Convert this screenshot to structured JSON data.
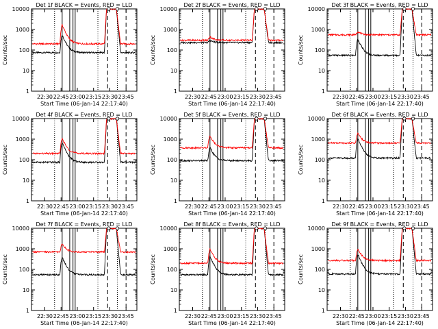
{
  "figure": {
    "ylabel": "Counts/sec",
    "xlabel": "Start Time (06-Jan-14 22:17:40)",
    "colors": {
      "events": "#000000",
      "lld": "#ff0000",
      "axes": "#000000"
    }
  },
  "chart_data": [
    {
      "type": "line",
      "title": "Det 1f BLACK = Events, RED = LLD",
      "xlabel": "Start Time (06-Jan-14 22:17:40)",
      "ylabel": "Counts/sec",
      "ylog": true,
      "ylim": [
        1,
        10000
      ],
      "xlim": [
        "22:17:40",
        "23:55"
      ],
      "xticks": [
        "22:30",
        "22:45",
        "23:00",
        "23:15",
        "23:30",
        "23:45"
      ],
      "yticks": [
        "1",
        "10",
        "100",
        "1000",
        "10000"
      ],
      "solid_vlines": [
        "22:46",
        "22:53",
        "22:56",
        "22:58"
      ],
      "dotted_vlines": [
        "22:39",
        "23:19",
        "23:37"
      ],
      "dashed_vlines": [
        "23:28",
        "23:45"
      ],
      "series": [
        {
          "name": "Events",
          "color": "#000000",
          "baseline": 75,
          "peak": 550
        },
        {
          "name": "LLD",
          "color": "#ff0000",
          "baseline": 200,
          "peak": 1700
        }
      ],
      "saa_top": 10000
    },
    {
      "type": "line",
      "title": "Det 2f BLACK = Events, RED = LLD",
      "xlabel": "Start Time (06-Jan-14 22:17:40)",
      "ylabel": "Counts/sec",
      "ylog": true,
      "ylim": [
        1,
        10000
      ],
      "xlim": [
        "22:17:40",
        "23:55"
      ],
      "xticks": [
        "22:30",
        "22:45",
        "23:00",
        "23:15",
        "23:30",
        "23:45"
      ],
      "yticks": [
        "1",
        "10",
        "100",
        "1000",
        "10000"
      ],
      "solid_vlines": [
        "22:46",
        "22:53",
        "22:56",
        "22:58"
      ],
      "dotted_vlines": [
        "22:39",
        "23:19",
        "23:37"
      ],
      "dashed_vlines": [
        "23:28",
        "23:45"
      ],
      "series": [
        {
          "name": "Events",
          "color": "#000000",
          "baseline": 230,
          "peak": 300
        },
        {
          "name": "LLD",
          "color": "#ff0000",
          "baseline": 300,
          "peak": 450
        }
      ],
      "saa_top": 10000
    },
    {
      "type": "line",
      "title": "Det 3f BLACK = Events, RED = LLD",
      "xlabel": "Start Time (06-Jan-14 22:17:40)",
      "ylabel": "Counts/sec",
      "ylog": true,
      "ylim": [
        1,
        10000
      ],
      "xlim": [
        "22:17:40",
        "23:55"
      ],
      "xticks": [
        "22:30",
        "22:45",
        "23:00",
        "23:15",
        "23:30",
        "23:45"
      ],
      "yticks": [
        "1",
        "10",
        "100",
        "1000",
        "10000"
      ],
      "solid_vlines": [
        "22:46",
        "22:53",
        "22:56",
        "22:58"
      ],
      "dotted_vlines": [
        "22:39",
        "23:19",
        "23:37"
      ],
      "dashed_vlines": [
        "23:28",
        "23:45"
      ],
      "series": [
        {
          "name": "Events",
          "color": "#000000",
          "baseline": 55,
          "peak": 350
        },
        {
          "name": "LLD",
          "color": "#ff0000",
          "baseline": 550,
          "peak": 800
        }
      ],
      "saa_top": 10000
    },
    {
      "type": "line",
      "title": "Det 4f BLACK = Events, RED = LLD",
      "xlabel": "Start Time (06-Jan-14 22:17:40)",
      "ylabel": "Counts/sec",
      "ylog": true,
      "ylim": [
        1,
        10000
      ],
      "xlim": [
        "22:17:40",
        "23:55"
      ],
      "xticks": [
        "22:30",
        "22:45",
        "23:00",
        "23:15",
        "23:30",
        "23:45"
      ],
      "yticks": [
        "1",
        "10",
        "100",
        "1000",
        "10000"
      ],
      "solid_vlines": [
        "22:46",
        "22:53",
        "22:56",
        "22:58"
      ],
      "dotted_vlines": [
        "22:39",
        "23:19",
        "23:37"
      ],
      "dashed_vlines": [
        "23:28",
        "23:45"
      ],
      "series": [
        {
          "name": "Events",
          "color": "#000000",
          "baseline": 75,
          "peak": 700
        },
        {
          "name": "LLD",
          "color": "#ff0000",
          "baseline": 200,
          "peak": 1100
        }
      ],
      "saa_top": 10000
    },
    {
      "type": "line",
      "title": "Det 5f BLACK = Events, RED = LLD",
      "xlabel": "Start Time (06-Jan-14 22:17:40)",
      "ylabel": "Counts/sec",
      "ylog": true,
      "ylim": [
        1,
        10000
      ],
      "xlim": [
        "22:17:40",
        "23:55"
      ],
      "xticks": [
        "22:30",
        "22:45",
        "23:00",
        "23:15",
        "23:30",
        "23:45"
      ],
      "yticks": [
        "1",
        "10",
        "100",
        "1000",
        "10000"
      ],
      "solid_vlines": [
        "22:46",
        "22:53",
        "22:56",
        "22:58"
      ],
      "dotted_vlines": [
        "22:39",
        "23:19",
        "23:37"
      ],
      "dashed_vlines": [
        "23:28",
        "23:45"
      ],
      "series": [
        {
          "name": "Events",
          "color": "#000000",
          "baseline": 90,
          "peak": 400
        },
        {
          "name": "LLD",
          "color": "#ff0000",
          "baseline": 380,
          "peak": 1500
        }
      ],
      "saa_top": 10000
    },
    {
      "type": "line",
      "title": "Det 6f BLACK = Events, RED = LLD",
      "xlabel": "Start Time (06-Jan-14 22:17:40)",
      "ylabel": "Counts/sec",
      "ylog": true,
      "ylim": [
        1,
        10000
      ],
      "xlim": [
        "22:17:40",
        "23:55"
      ],
      "xticks": [
        "22:30",
        "22:45",
        "23:00",
        "23:15",
        "23:30",
        "23:45"
      ],
      "yticks": [
        "1",
        "10",
        "100",
        "1000",
        "10000"
      ],
      "solid_vlines": [
        "22:46",
        "22:53",
        "22:56",
        "22:58"
      ],
      "dotted_vlines": [
        "22:39",
        "23:19",
        "23:37"
      ],
      "dashed_vlines": [
        "23:28",
        "23:45"
      ],
      "series": [
        {
          "name": "Events",
          "color": "#000000",
          "baseline": 120,
          "peak": 1100
        },
        {
          "name": "LLD",
          "color": "#ff0000",
          "baseline": 650,
          "peak": 2000
        }
      ],
      "saa_top": 10000
    },
    {
      "type": "line",
      "title": "Det 7f BLACK = Events, RED = LLD",
      "xlabel": "Start Time (06-Jan-14 22:17:40)",
      "ylabel": "Counts/sec",
      "ylog": true,
      "ylim": [
        1,
        10000
      ],
      "xlim": [
        "22:17:40",
        "23:55"
      ],
      "xticks": [
        "22:30",
        "22:45",
        "23:00",
        "23:15",
        "23:30",
        "23:45"
      ],
      "yticks": [
        "1",
        "10",
        "100",
        "1000",
        "10000"
      ],
      "solid_vlines": [
        "22:46",
        "22:53",
        "22:56",
        "22:58"
      ],
      "dotted_vlines": [
        "22:39",
        "23:19",
        "23:37"
      ],
      "dashed_vlines": [
        "23:28",
        "23:45"
      ],
      "series": [
        {
          "name": "Events",
          "color": "#000000",
          "baseline": 55,
          "peak": 400
        },
        {
          "name": "LLD",
          "color": "#ff0000",
          "baseline": 700,
          "peak": 1800
        }
      ],
      "saa_top": 10000
    },
    {
      "type": "line",
      "title": "Det 8f BLACK = Events, RED = LLD",
      "xlabel": "Start Time (06-Jan-14 22:17:40)",
      "ylabel": "Counts/sec",
      "ylog": true,
      "ylim": [
        1,
        10000
      ],
      "xlim": [
        "22:17:40",
        "23:55"
      ],
      "xticks": [
        "22:30",
        "22:45",
        "23:00",
        "23:15",
        "23:30",
        "23:45"
      ],
      "yticks": [
        "1",
        "10",
        "100",
        "1000",
        "10000"
      ],
      "solid_vlines": [
        "22:46",
        "22:53",
        "22:56",
        "22:58"
      ],
      "dotted_vlines": [
        "22:39",
        "23:19",
        "23:37"
      ],
      "dashed_vlines": [
        "23:28",
        "23:45"
      ],
      "series": [
        {
          "name": "Events",
          "color": "#000000",
          "baseline": 55,
          "peak": 450
        },
        {
          "name": "LLD",
          "color": "#ff0000",
          "baseline": 200,
          "peak": 1000
        }
      ],
      "saa_top": 10000
    },
    {
      "type": "line",
      "title": "Det 9f BLACK = Events, RED = LLD",
      "xlabel": "Start Time (06-Jan-14 22:17:40)",
      "ylabel": "Counts/sec",
      "ylog": true,
      "ylim": [
        1,
        10000
      ],
      "xlim": [
        "22:17:40",
        "23:55"
      ],
      "xticks": [
        "22:30",
        "22:45",
        "23:00",
        "23:15",
        "23:30",
        "23:45"
      ],
      "yticks": [
        "1",
        "10",
        "100",
        "1000",
        "10000"
      ],
      "solid_vlines": [
        "22:46",
        "22:53",
        "22:56",
        "22:58"
      ],
      "dotted_vlines": [
        "22:39",
        "23:19",
        "23:37"
      ],
      "dashed_vlines": [
        "23:28",
        "23:45"
      ],
      "series": [
        {
          "name": "Events",
          "color": "#000000",
          "baseline": 60,
          "peak": 550
        },
        {
          "name": "LLD",
          "color": "#ff0000",
          "baseline": 270,
          "peak": 1000
        }
      ],
      "saa_top": 10000
    }
  ]
}
